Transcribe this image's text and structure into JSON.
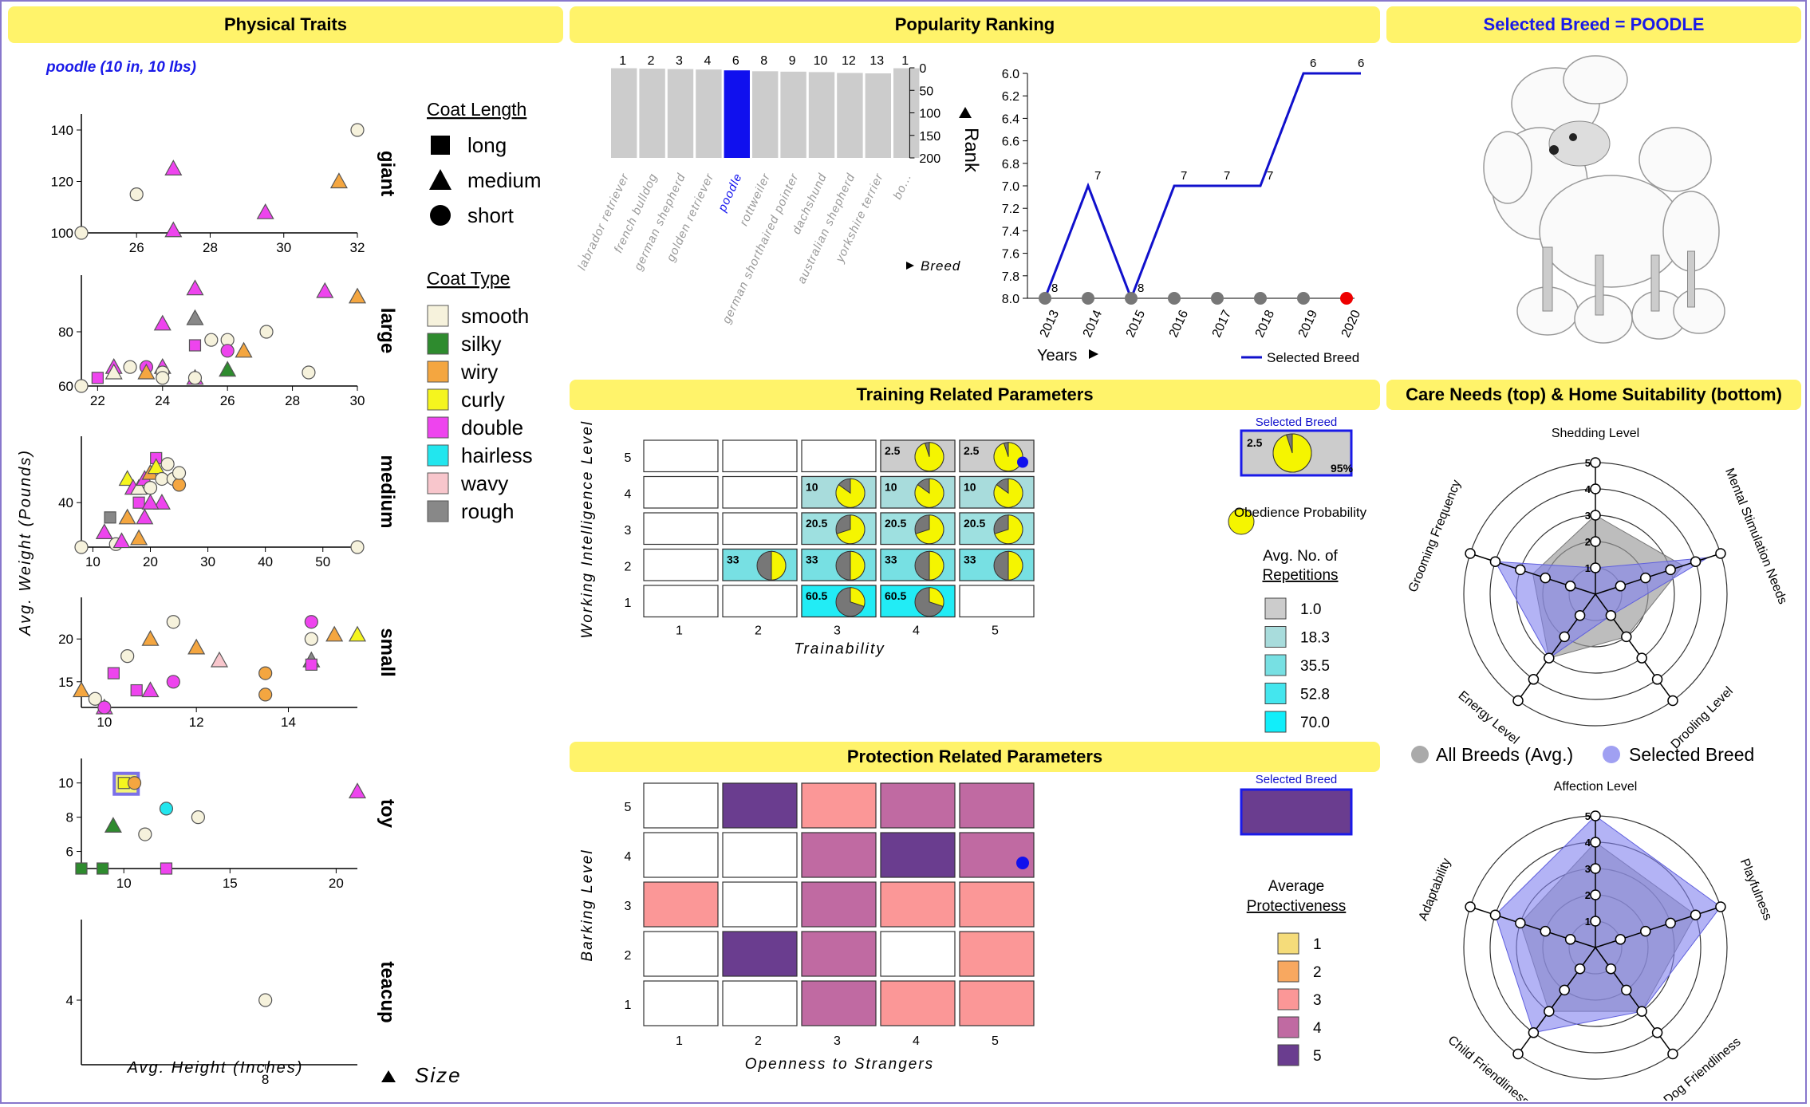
{
  "headers": {
    "physical": "Physical Traits",
    "popularity": "Popularity Ranking",
    "selected": "Selected Breed = POODLE",
    "training": "Training Related Parameters",
    "care": "Care Needs (top) & Home Suitability (bottom)",
    "protection": "Protection Related Parameters"
  },
  "physical": {
    "caption": "poodle (10 in, 10 lbs)",
    "ylabel": "Avg. Weight (Pounds)",
    "xlabel": "Avg. Height (Inches)",
    "size_label": "Size",
    "coat_length_title": "Coat Length",
    "coat_length": [
      {
        "label": "long",
        "shape": "square"
      },
      {
        "label": "medium",
        "shape": "triangle"
      },
      {
        "label": "short",
        "shape": "circle"
      }
    ],
    "coat_type_title": "Coat Type",
    "coat_types": [
      {
        "label": "smooth",
        "color": "#f6f2dc"
      },
      {
        "label": "silky",
        "color": "#2e8b2e"
      },
      {
        "label": "wiry",
        "color": "#f4a640"
      },
      {
        "label": "curly",
        "color": "#f5f51e"
      },
      {
        "label": "double",
        "color": "#ee44ee"
      },
      {
        "label": "hairless",
        "color": "#22e6ee"
      },
      {
        "label": "wavy",
        "color": "#f8c6cc"
      },
      {
        "label": "rough",
        "color": "#888888"
      }
    ],
    "panels": [
      {
        "name": "giant",
        "xlim": [
          24.5,
          32
        ],
        "ylim": [
          100,
          140
        ],
        "xticks": [
          26,
          28,
          30,
          32
        ],
        "yticks": [
          100,
          120,
          140
        ],
        "points": [
          [
            24.5,
            100,
            "c",
            "smooth"
          ],
          [
            26,
            115,
            "c",
            "smooth"
          ],
          [
            27,
            125,
            "t",
            "double"
          ],
          [
            27,
            101,
            "t",
            "double"
          ],
          [
            29.5,
            108,
            "t",
            "double"
          ],
          [
            31.5,
            120,
            "t",
            "wiry"
          ],
          [
            32,
            140,
            "c",
            "smooth"
          ]
        ]
      },
      {
        "name": "large",
        "xlim": [
          21.5,
          30
        ],
        "ylim": [
          60,
          95
        ],
        "xticks": [
          22,
          24,
          26,
          28,
          30
        ],
        "yticks": [
          60,
          80
        ],
        "points": [
          [
            21.5,
            60,
            "c",
            "smooth"
          ],
          [
            22,
            63,
            "s",
            "double"
          ],
          [
            22.5,
            67,
            "t",
            "double"
          ],
          [
            22.5,
            65,
            "t",
            "smooth"
          ],
          [
            23,
            67,
            "c",
            "smooth"
          ],
          [
            23.5,
            67,
            "c",
            "double"
          ],
          [
            23.5,
            65,
            "t",
            "wiry"
          ],
          [
            24,
            67,
            "t",
            "double"
          ],
          [
            24,
            65,
            "c",
            "smooth"
          ],
          [
            24,
            83,
            "t",
            "double"
          ],
          [
            25,
            85,
            "t",
            "rough"
          ],
          [
            25,
            96,
            "t",
            "double"
          ],
          [
            25,
            75,
            "s",
            "double"
          ],
          [
            25,
            63,
            "t",
            "double"
          ],
          [
            25,
            63,
            "c",
            "smooth"
          ],
          [
            25.5,
            77,
            "c",
            "smooth"
          ],
          [
            26,
            77,
            "c",
            "smooth"
          ],
          [
            26,
            73,
            "c",
            "double"
          ],
          [
            26,
            66,
            "t",
            "silky"
          ],
          [
            26.5,
            73,
            "t",
            "wiry"
          ],
          [
            27.2,
            80,
            "c",
            "smooth"
          ],
          [
            28.5,
            65,
            "c",
            "smooth"
          ],
          [
            29,
            95,
            "t",
            "double"
          ],
          [
            30,
            93,
            "t",
            "wiry"
          ],
          [
            24,
            63,
            "c",
            "smooth"
          ]
        ]
      },
      {
        "name": "medium",
        "xlim": [
          8,
          56
        ],
        "ylim": [
          25,
          57
        ],
        "xticks": [
          10,
          20,
          30,
          40,
          50
        ],
        "yticks": [
          40
        ],
        "points": [
          [
            8,
            25,
            "c",
            "smooth"
          ],
          [
            12,
            30,
            "t",
            "double"
          ],
          [
            13,
            35,
            "s",
            "rough"
          ],
          [
            14,
            26,
            "c",
            "smooth"
          ],
          [
            15,
            27,
            "t",
            "double"
          ],
          [
            16,
            35,
            "t",
            "wiry"
          ],
          [
            16,
            48,
            "t",
            "curly"
          ],
          [
            17,
            45,
            "t",
            "double"
          ],
          [
            18,
            28,
            "t",
            "wiry"
          ],
          [
            18,
            40,
            "s",
            "double"
          ],
          [
            18,
            45,
            "t",
            "smooth"
          ],
          [
            19,
            48,
            "t",
            "double"
          ],
          [
            19,
            35,
            "t",
            "double"
          ],
          [
            20,
            45,
            "c",
            "smooth"
          ],
          [
            20,
            50,
            "t",
            "wiry"
          ],
          [
            21,
            55,
            "s",
            "double"
          ],
          [
            21,
            52,
            "t",
            "curly"
          ],
          [
            22,
            48,
            "c",
            "smooth"
          ],
          [
            23,
            53,
            "c",
            "smooth"
          ],
          [
            24,
            48,
            "c",
            "smooth"
          ],
          [
            25,
            46,
            "c",
            "wiry"
          ],
          [
            25,
            50,
            "c",
            "smooth"
          ],
          [
            22,
            40,
            "t",
            "double"
          ],
          [
            20,
            40,
            "t",
            "double"
          ],
          [
            56,
            25,
            "c",
            "smooth"
          ]
        ]
      },
      {
        "name": "small",
        "xlim": [
          9.5,
          15.5
        ],
        "ylim": [
          12,
          23
        ],
        "xticks": [
          10,
          12,
          14
        ],
        "yticks": [
          15,
          20
        ],
        "points": [
          [
            9.5,
            14,
            "t",
            "wiry"
          ],
          [
            9.8,
            13,
            "c",
            "smooth"
          ],
          [
            10,
            12,
            "t",
            "double"
          ],
          [
            10,
            12,
            "c",
            "double"
          ],
          [
            10.2,
            16,
            "s",
            "double"
          ],
          [
            10.5,
            18,
            "c",
            "smooth"
          ],
          [
            10.7,
            14,
            "s",
            "double"
          ],
          [
            11,
            14,
            "t",
            "double"
          ],
          [
            11,
            20,
            "t",
            "wiry"
          ],
          [
            11.5,
            15,
            "c",
            "double"
          ],
          [
            11.5,
            22,
            "c",
            "smooth"
          ],
          [
            12,
            19,
            "t",
            "wiry"
          ],
          [
            12.5,
            17.5,
            "t",
            "wavy"
          ],
          [
            13.5,
            16,
            "c",
            "wiry"
          ],
          [
            13.5,
            13.5,
            "c",
            "wiry"
          ],
          [
            14.5,
            20,
            "c",
            "smooth"
          ],
          [
            14.5,
            17.5,
            "t",
            "smooth"
          ],
          [
            14.5,
            17.5,
            "t",
            "rough"
          ],
          [
            14.5,
            17,
            "s",
            "double"
          ],
          [
            14.5,
            22,
            "c",
            "double"
          ],
          [
            15,
            20.5,
            "t",
            "wiry"
          ],
          [
            15.5,
            20.5,
            "t",
            "curly"
          ]
        ]
      },
      {
        "name": "toy",
        "xlim": [
          8,
          21
        ],
        "ylim": [
          5,
          10.5
        ],
        "xticks": [
          10,
          15,
          20
        ],
        "yticks": [
          6,
          8,
          10
        ],
        "points": [
          [
            8,
            5,
            "s",
            "silky"
          ],
          [
            9,
            5,
            "s",
            "silky"
          ],
          [
            9.5,
            7.5,
            "t",
            "silky"
          ],
          [
            10,
            10,
            "s",
            "curly"
          ],
          [
            10.5,
            10,
            "c",
            "wiry"
          ],
          [
            11,
            7,
            "c",
            "smooth"
          ],
          [
            12,
            8.5,
            "c",
            "hairless"
          ],
          [
            12,
            5,
            "s",
            "double"
          ],
          [
            13.5,
            8,
            "c",
            "smooth"
          ],
          [
            21,
            9.5,
            "t",
            "double"
          ]
        ],
        "highlight": [
          10,
          10
        ]
      },
      {
        "name": "teacup",
        "xlim": [
          5,
          9.5
        ],
        "ylim": [
          0,
          8
        ],
        "xticks": [
          8
        ],
        "yticks": [
          4
        ],
        "points": [
          [
            8,
            4,
            "c",
            "smooth"
          ]
        ]
      }
    ]
  },
  "popularity": {
    "bar_breeds": [
      "labrador retriever",
      "french bulldog",
      "german shepherd",
      "golden retriever",
      "poodle",
      "rottweiler",
      "german shorthaired pointer",
      "dachshund",
      "australian shepherd",
      "yorkshire terrier",
      "bo..."
    ],
    "bar_ranks": [
      1,
      2,
      3,
      4,
      6,
      8,
      9,
      10,
      12,
      13,
      1
    ],
    "selected_index": 4,
    "bar_yticks": [
      0,
      50,
      100,
      150,
      200
    ],
    "breed_axis_label": "Breed",
    "rank_label": "Rank",
    "years": [
      "2013",
      "2014",
      "2015",
      "2016",
      "2017",
      "2018",
      "2019",
      "2020"
    ],
    "line_ranks": [
      8,
      7,
      8,
      7,
      7,
      7,
      6,
      6
    ],
    "line_yticks": [
      "6.0",
      "6.2",
      "6.4",
      "6.6",
      "6.8",
      "7.0",
      "7.2",
      "7.4",
      "7.6",
      "7.8",
      "8.0"
    ],
    "years_label": "Years",
    "legend_label": "Selected Breed"
  },
  "training": {
    "ylabel": "Working Intelligence Level",
    "xlabel": "Trainability",
    "selected_label": "Selected Breed",
    "selected_value": "2.5",
    "selected_pct": "95%",
    "obedience_label": "Obedience Probability (Avg.)",
    "reps_title": "Avg. No. of Repetitions",
    "reps_legend": [
      {
        "label": "1.0",
        "color": "#cccccc"
      },
      {
        "label": "18.3",
        "color": "#a8dcdc"
      },
      {
        "label": "35.5",
        "color": "#77e0e3"
      },
      {
        "label": "52.8",
        "color": "#44e6ee"
      },
      {
        "label": "70.0",
        "color": "#11eefa"
      }
    ],
    "cells": [
      {
        "t": 4,
        "w": 5,
        "reps": "2.5",
        "p": 0.95,
        "color": "#cccccc"
      },
      {
        "t": 5,
        "w": 5,
        "reps": "2.5",
        "p": 0.95,
        "color": "#cccccc"
      },
      {
        "t": 3,
        "w": 4,
        "reps": "10",
        "p": 0.85,
        "color": "#a8dcdc"
      },
      {
        "t": 4,
        "w": 4,
        "reps": "10",
        "p": 0.85,
        "color": "#a8dcdc"
      },
      {
        "t": 5,
        "w": 4,
        "reps": "10",
        "p": 0.85,
        "color": "#a8dcdc"
      },
      {
        "t": 3,
        "w": 3,
        "reps": "20.5",
        "p": 0.7,
        "color": "#9ee0e0"
      },
      {
        "t": 4,
        "w": 3,
        "reps": "20.5",
        "p": 0.7,
        "color": "#9ee0e0"
      },
      {
        "t": 5,
        "w": 3,
        "reps": "20.5",
        "p": 0.7,
        "color": "#9ee0e0"
      },
      {
        "t": 2,
        "w": 2,
        "reps": "33",
        "p": 0.5,
        "color": "#77e0e3"
      },
      {
        "t": 3,
        "w": 2,
        "reps": "33",
        "p": 0.5,
        "color": "#77e0e3"
      },
      {
        "t": 4,
        "w": 2,
        "reps": "33",
        "p": 0.5,
        "color": "#77e0e3"
      },
      {
        "t": 5,
        "w": 2,
        "reps": "33",
        "p": 0.5,
        "color": "#77e0e3"
      },
      {
        "t": 3,
        "w": 1,
        "reps": "60.5",
        "p": 0.3,
        "color": "#22ecf5"
      },
      {
        "t": 4,
        "w": 1,
        "reps": "60.5",
        "p": 0.3,
        "color": "#22ecf5"
      }
    ],
    "selected_cell": {
      "t": 5,
      "w": 5
    }
  },
  "protection": {
    "ylabel": "Barking Level",
    "xlabel": "Openness to Strangers",
    "selected_label": "Selected Breed",
    "selected_color": "#6a3d8f",
    "legend_title_1": "Average",
    "legend_title_2": "Protectiveness",
    "legend": [
      {
        "label": "1",
        "color": "#f5dc7a"
      },
      {
        "label": "2",
        "color": "#f8a860"
      },
      {
        "label": "3",
        "color": "#fb9797"
      },
      {
        "label": "4",
        "color": "#c06aa2"
      },
      {
        "label": "5",
        "color": "#6a3d8f"
      }
    ],
    "grid": [
      [
        "#ffffff",
        "#6a3d8f",
        "#fb9797",
        "#c06aa2",
        "#c06aa2"
      ],
      [
        "#ffffff",
        "#ffffff",
        "#c06aa2",
        "#6a3d8f",
        "#c06aa2"
      ],
      [
        "#fb9797",
        "#ffffff",
        "#c06aa2",
        "#fb9797",
        "#fb9797"
      ],
      [
        "#ffffff",
        "#6a3d8f",
        "#c06aa2",
        "#ffffff",
        "#fb9797"
      ],
      [
        "#ffffff",
        "#ffffff",
        "#c06aa2",
        "#fb9797",
        "#fb9797"
      ]
    ],
    "selected_cell": {
      "o": 5,
      "b": 4
    }
  },
  "care": {
    "axes_top": [
      "Shedding Level",
      "Mental Stimulation Needs",
      "Drooling Level",
      "Energy Level",
      "Grooming Frequency"
    ],
    "avg_top": [
      3,
      3.5,
      2,
      3,
      2.5
    ],
    "sel_top": [
      1,
      4.5,
      1,
      3,
      4
    ],
    "axes_bottom": [
      "Affection Level",
      "Playfulness",
      "Dog Friendliness",
      "Child Friendliness",
      "Adaptability"
    ],
    "avg_bottom": [
      4,
      4,
      3,
      3,
      3
    ],
    "sel_bottom": [
      5,
      5,
      3,
      4,
      4
    ],
    "ticks": [
      "1",
      "2",
      "3",
      "4",
      "5"
    ],
    "legend_avg": "All Breeds (Avg.)",
    "legend_sel": "Selected Breed",
    "avg_color": "#999999",
    "sel_color": "#8080ee"
  }
}
